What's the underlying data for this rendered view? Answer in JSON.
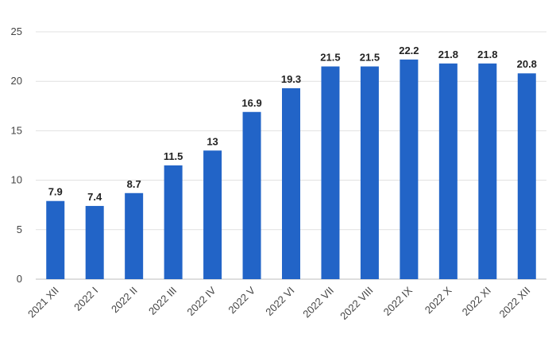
{
  "chart_data": {
    "type": "bar",
    "categories": [
      "2021 XII",
      "2022 I",
      "2022 II",
      "2022 III",
      "2022 IV",
      "2022 V",
      "2022 VI",
      "2022 VII",
      "2022 VIII",
      "2022 IX",
      "2022 X",
      "2022 XI",
      "2022 XII"
    ],
    "values": [
      7.9,
      7.4,
      8.7,
      11.5,
      13,
      16.9,
      19.3,
      21.5,
      21.5,
      22.2,
      21.8,
      21.8,
      20.8
    ],
    "data_labels": [
      "7.9",
      "7.4",
      "8.7",
      "11.5",
      "13",
      "16.9",
      "19.3",
      "21.5",
      "21.5",
      "22.2",
      "21.8",
      "21.8",
      "20.8"
    ],
    "yticks": [
      0,
      5,
      10,
      15,
      20,
      25
    ],
    "ylim": [
      0,
      25
    ],
    "grid": true,
    "legend": "none",
    "bar_color": "#2264c7",
    "title": "",
    "xlabel": "",
    "ylabel": ""
  }
}
